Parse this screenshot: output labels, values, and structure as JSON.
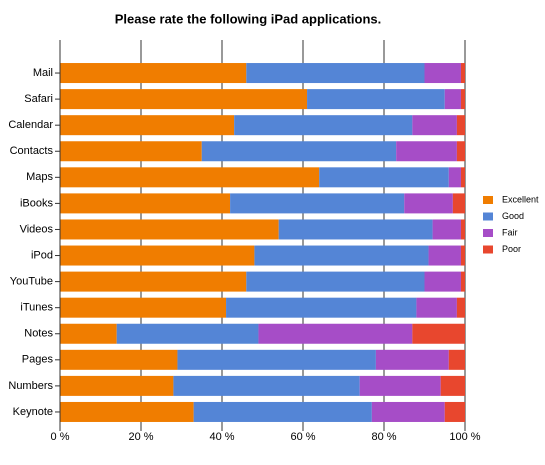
{
  "chart_data": {
    "type": "stacked-bar-horizontal",
    "title": "Please rate the following iPad applications.",
    "categories": [
      "Mail",
      "Safari",
      "Calendar",
      "Contacts",
      "Maps",
      "iBooks",
      "Videos",
      "iPod",
      "YouTube",
      "iTunes",
      "Notes",
      "Pages",
      "Numbers",
      "Keynote"
    ],
    "series": [
      {
        "name": "Excellent",
        "color": "#f07d00",
        "values": [
          46,
          61,
          43,
          35,
          64,
          42,
          54,
          48,
          46,
          41,
          14,
          29,
          28,
          33
        ]
      },
      {
        "name": "Good",
        "color": "#5485d6",
        "values": [
          44,
          34,
          44,
          48,
          32,
          43,
          38,
          43,
          44,
          47,
          35,
          49,
          46,
          44
        ]
      },
      {
        "name": "Fair",
        "color": "#a64dc7",
        "values": [
          9,
          4,
          11,
          15,
          3,
          12,
          7,
          8,
          9,
          10,
          38,
          18,
          20,
          18
        ]
      },
      {
        "name": "Poor",
        "color": "#e8472e",
        "values": [
          1,
          1,
          2,
          2,
          1,
          3,
          1,
          1,
          1,
          2,
          13,
          4,
          6,
          5
        ]
      }
    ],
    "xlim": [
      0,
      100
    ],
    "xticks": [
      {
        "value": 0,
        "label": "0 %"
      },
      {
        "value": 20,
        "label": "20 %"
      },
      {
        "value": 40,
        "label": "40 %"
      },
      {
        "value": 60,
        "label": "60 %"
      },
      {
        "value": 80,
        "label": "80 %"
      },
      {
        "value": 100,
        "label": "100 %"
      }
    ],
    "grid": true,
    "legend": "right"
  }
}
